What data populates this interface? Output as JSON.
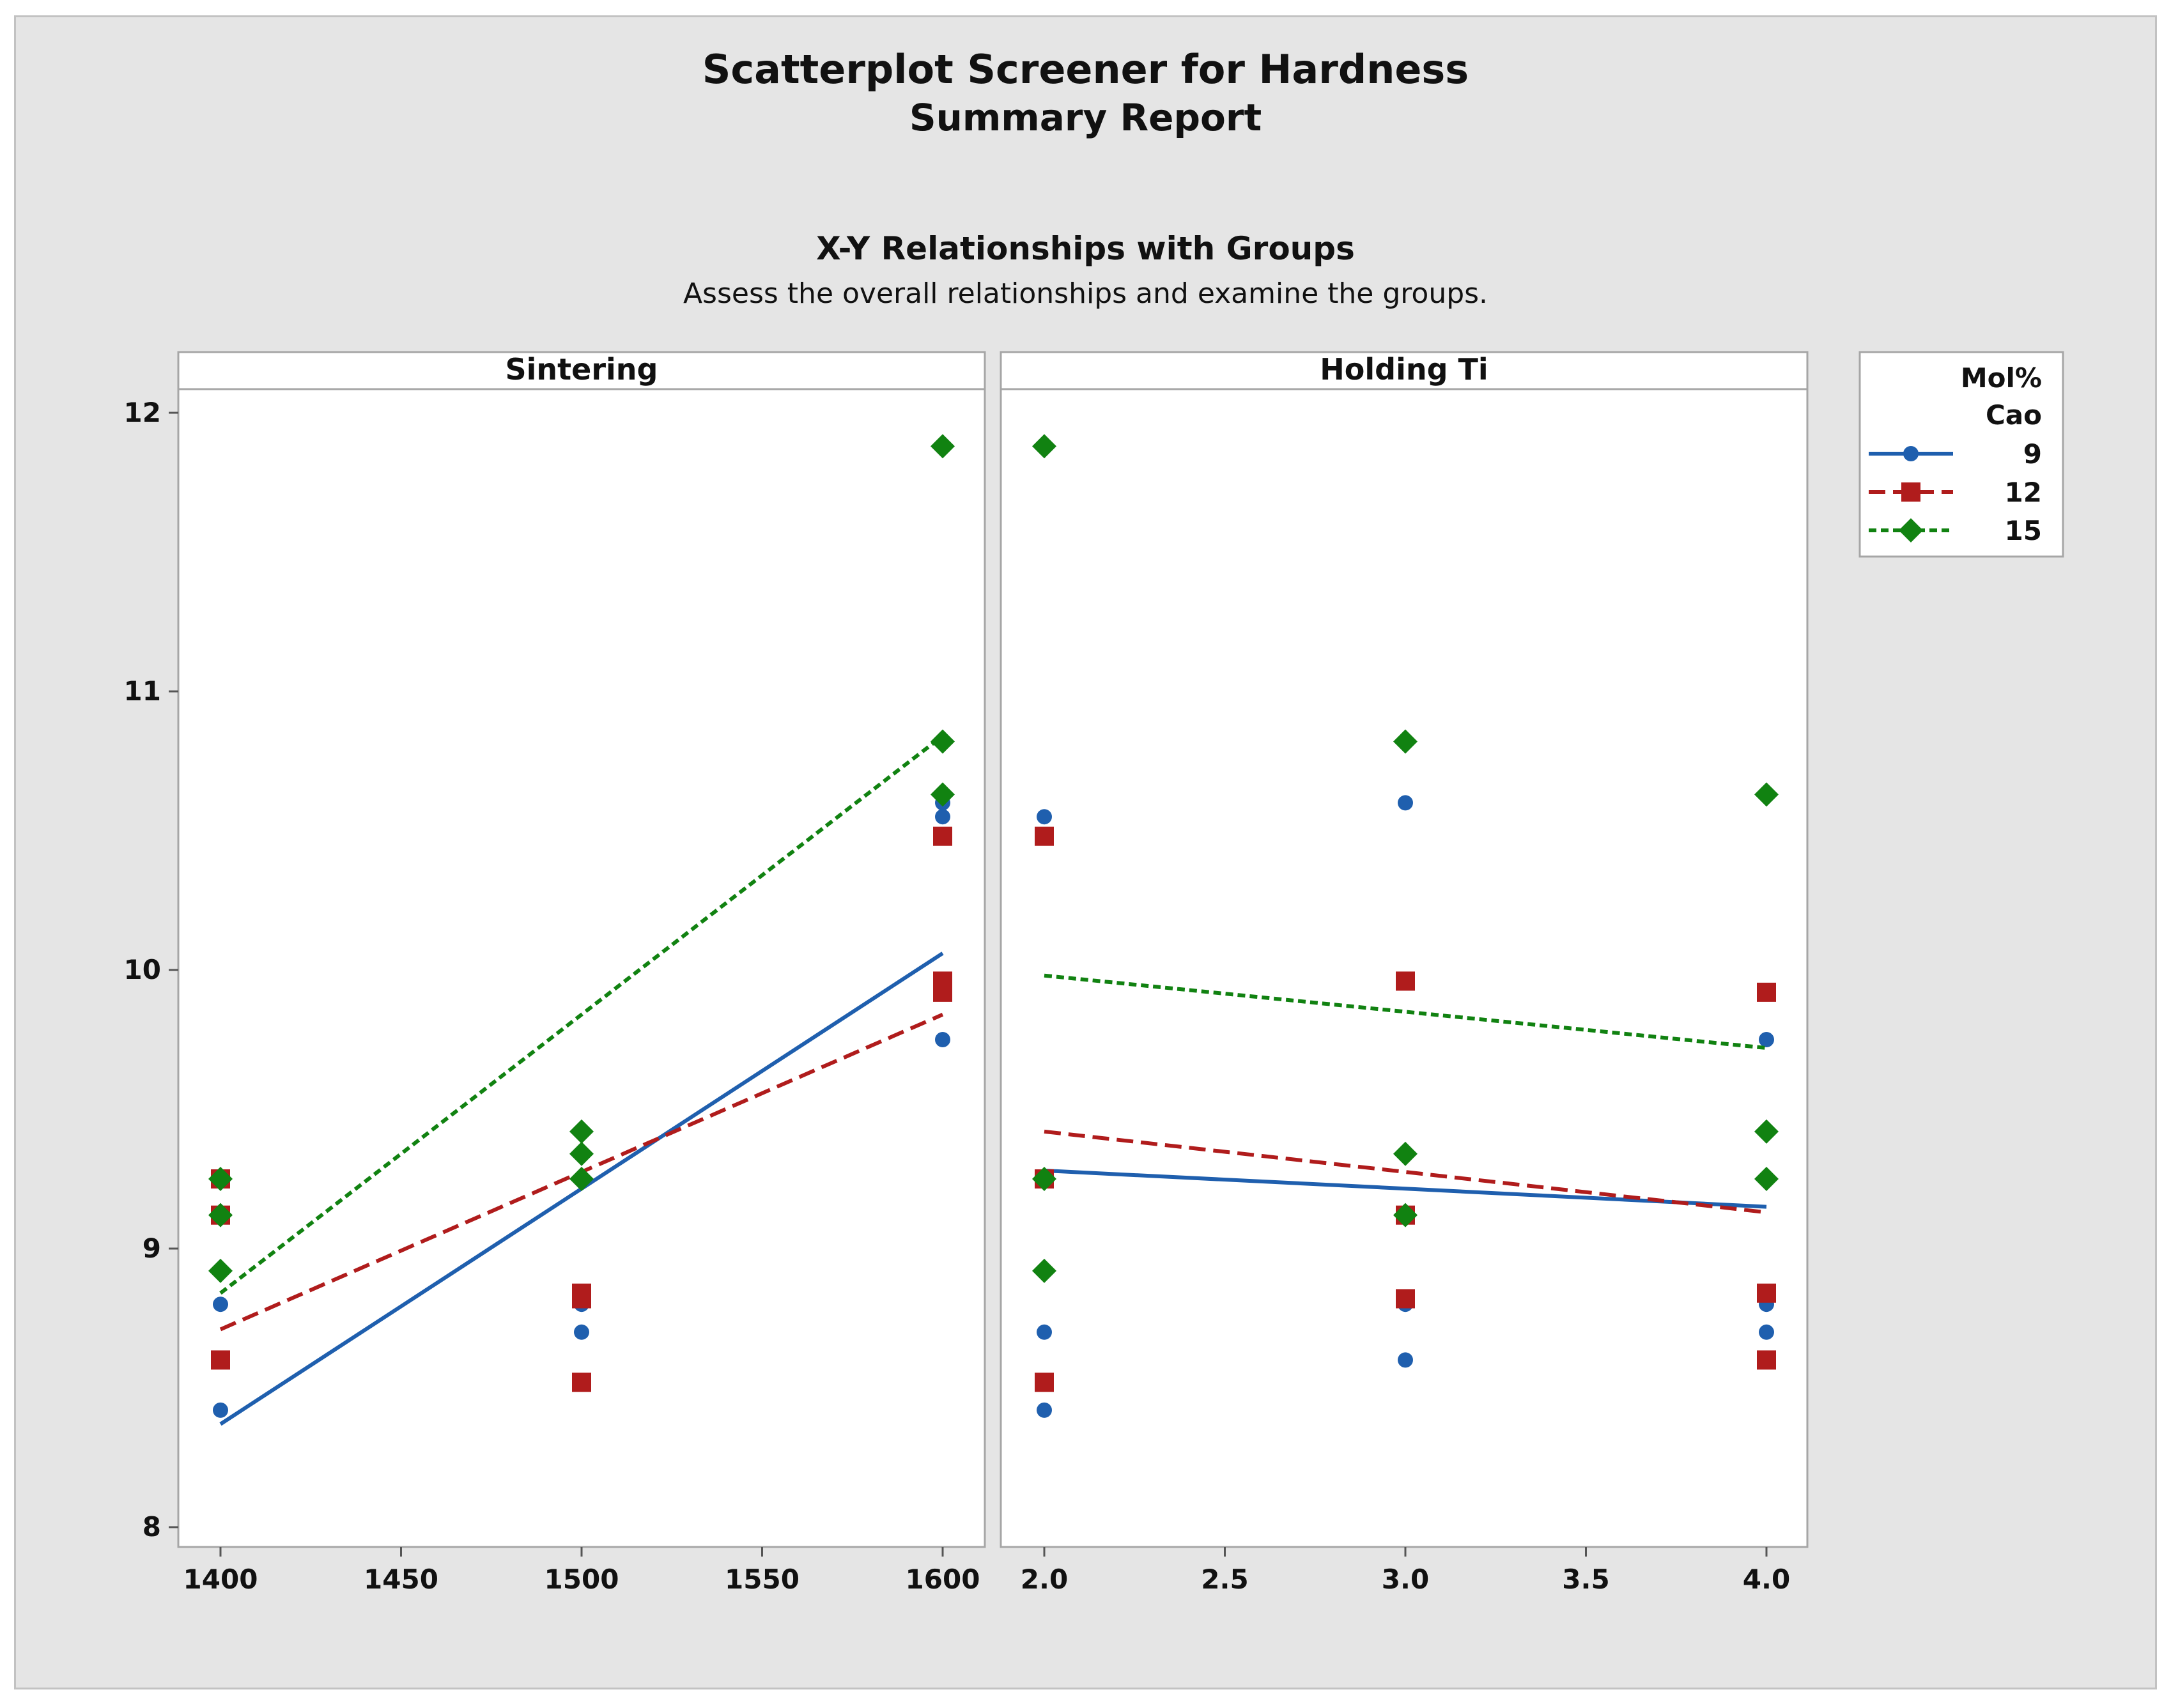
{
  "header": {
    "title": "Scatterplot Screener for Hardness",
    "subtitle": "Summary Report",
    "section_title": "X-Y Relationships with Groups",
    "section_subtitle": "Assess the overall relationships and examine the groups."
  },
  "chart_data": {
    "type": "scatter",
    "ylim": [
      8,
      12
    ],
    "yticks": [
      8,
      9,
      10,
      11,
      12
    ],
    "legend": {
      "title_line1": "Mol%",
      "title_line2": "Cao",
      "position": "right",
      "entries": [
        {
          "label": "9",
          "color": "#1f5fae",
          "marker": "circle",
          "line": "solid"
        },
        {
          "label": "12",
          "color": "#b01c1c",
          "marker": "square",
          "line": "dashed"
        },
        {
          "label": "15",
          "color": "#118211",
          "marker": "diamond",
          "line": "dotted"
        }
      ]
    },
    "panels": [
      {
        "title": "Sintering",
        "xlim": [
          1400,
          1600
        ],
        "xticks": [
          "1400",
          "1450",
          "1500",
          "1550",
          "1600"
        ],
        "xtick_values": [
          1400,
          1450,
          1500,
          1550,
          1600
        ],
        "series": [
          {
            "name": "9",
            "points": [
              [
                1400,
                8.8
              ],
              [
                1400,
                8.42
              ],
              [
                1400,
                9.25
              ],
              [
                1400,
                9.12
              ],
              [
                1500,
                8.8
              ],
              [
                1500,
                8.7
              ],
              [
                1500,
                9.25
              ],
              [
                1600,
                10.55
              ],
              [
                1600,
                10.6
              ],
              [
                1600,
                9.75
              ]
            ],
            "fit": [
              [
                1400,
                8.37
              ],
              [
                1600,
                10.06
              ]
            ]
          },
          {
            "name": "12",
            "points": [
              [
                1400,
                9.25
              ],
              [
                1400,
                9.12
              ],
              [
                1400,
                8.6
              ],
              [
                1500,
                8.84
              ],
              [
                1500,
                8.82
              ],
              [
                1500,
                8.52
              ],
              [
                1600,
                10.48
              ],
              [
                1600,
                9.96
              ],
              [
                1600,
                9.92
              ]
            ],
            "fit": [
              [
                1400,
                8.71
              ],
              [
                1600,
                9.84
              ]
            ]
          },
          {
            "name": "15",
            "points": [
              [
                1400,
                8.92
              ],
              [
                1400,
                9.25
              ],
              [
                1400,
                9.12
              ],
              [
                1500,
                9.42
              ],
              [
                1500,
                9.34
              ],
              [
                1500,
                9.25
              ],
              [
                1600,
                11.88
              ],
              [
                1600,
                10.82
              ],
              [
                1600,
                10.63
              ]
            ],
            "fit": [
              [
                1400,
                8.84
              ],
              [
                1600,
                10.84
              ]
            ]
          }
        ]
      },
      {
        "title": "Holding Ti",
        "xlim": [
          2.0,
          4.0
        ],
        "xticks": [
          "2.0",
          "2.5",
          "3.0",
          "3.5",
          "4.0"
        ],
        "xtick_values": [
          2.0,
          2.5,
          3.0,
          3.5,
          4.0
        ],
        "series": [
          {
            "name": "9",
            "points": [
              [
                2,
                10.55
              ],
              [
                2,
                8.7
              ],
              [
                2,
                8.42
              ],
              [
                2,
                9.25
              ],
              [
                3,
                10.6
              ],
              [
                3,
                8.8
              ],
              [
                3,
                8.6
              ],
              [
                3,
                9.12
              ],
              [
                4,
                9.75
              ],
              [
                4,
                8.8
              ],
              [
                4,
                8.7
              ]
            ],
            "fit": [
              [
                2,
                9.28
              ],
              [
                4,
                9.15
              ]
            ]
          },
          {
            "name": "12",
            "points": [
              [
                2,
                10.48
              ],
              [
                2,
                9.25
              ],
              [
                2,
                8.52
              ],
              [
                3,
                9.96
              ],
              [
                3,
                8.82
              ],
              [
                3,
                9.12
              ],
              [
                4,
                9.92
              ],
              [
                4,
                8.84
              ],
              [
                4,
                8.6
              ]
            ],
            "fit": [
              [
                2,
                9.42
              ],
              [
                4,
                9.13
              ]
            ]
          },
          {
            "name": "15",
            "points": [
              [
                2,
                11.88
              ],
              [
                2,
                9.25
              ],
              [
                2,
                8.92
              ],
              [
                3,
                10.82
              ],
              [
                3,
                9.34
              ],
              [
                3,
                9.12
              ],
              [
                4,
                10.63
              ],
              [
                4,
                9.42
              ],
              [
                4,
                9.25
              ]
            ],
            "fit": [
              [
                2,
                9.98
              ],
              [
                4,
                9.72
              ]
            ]
          }
        ]
      }
    ]
  }
}
